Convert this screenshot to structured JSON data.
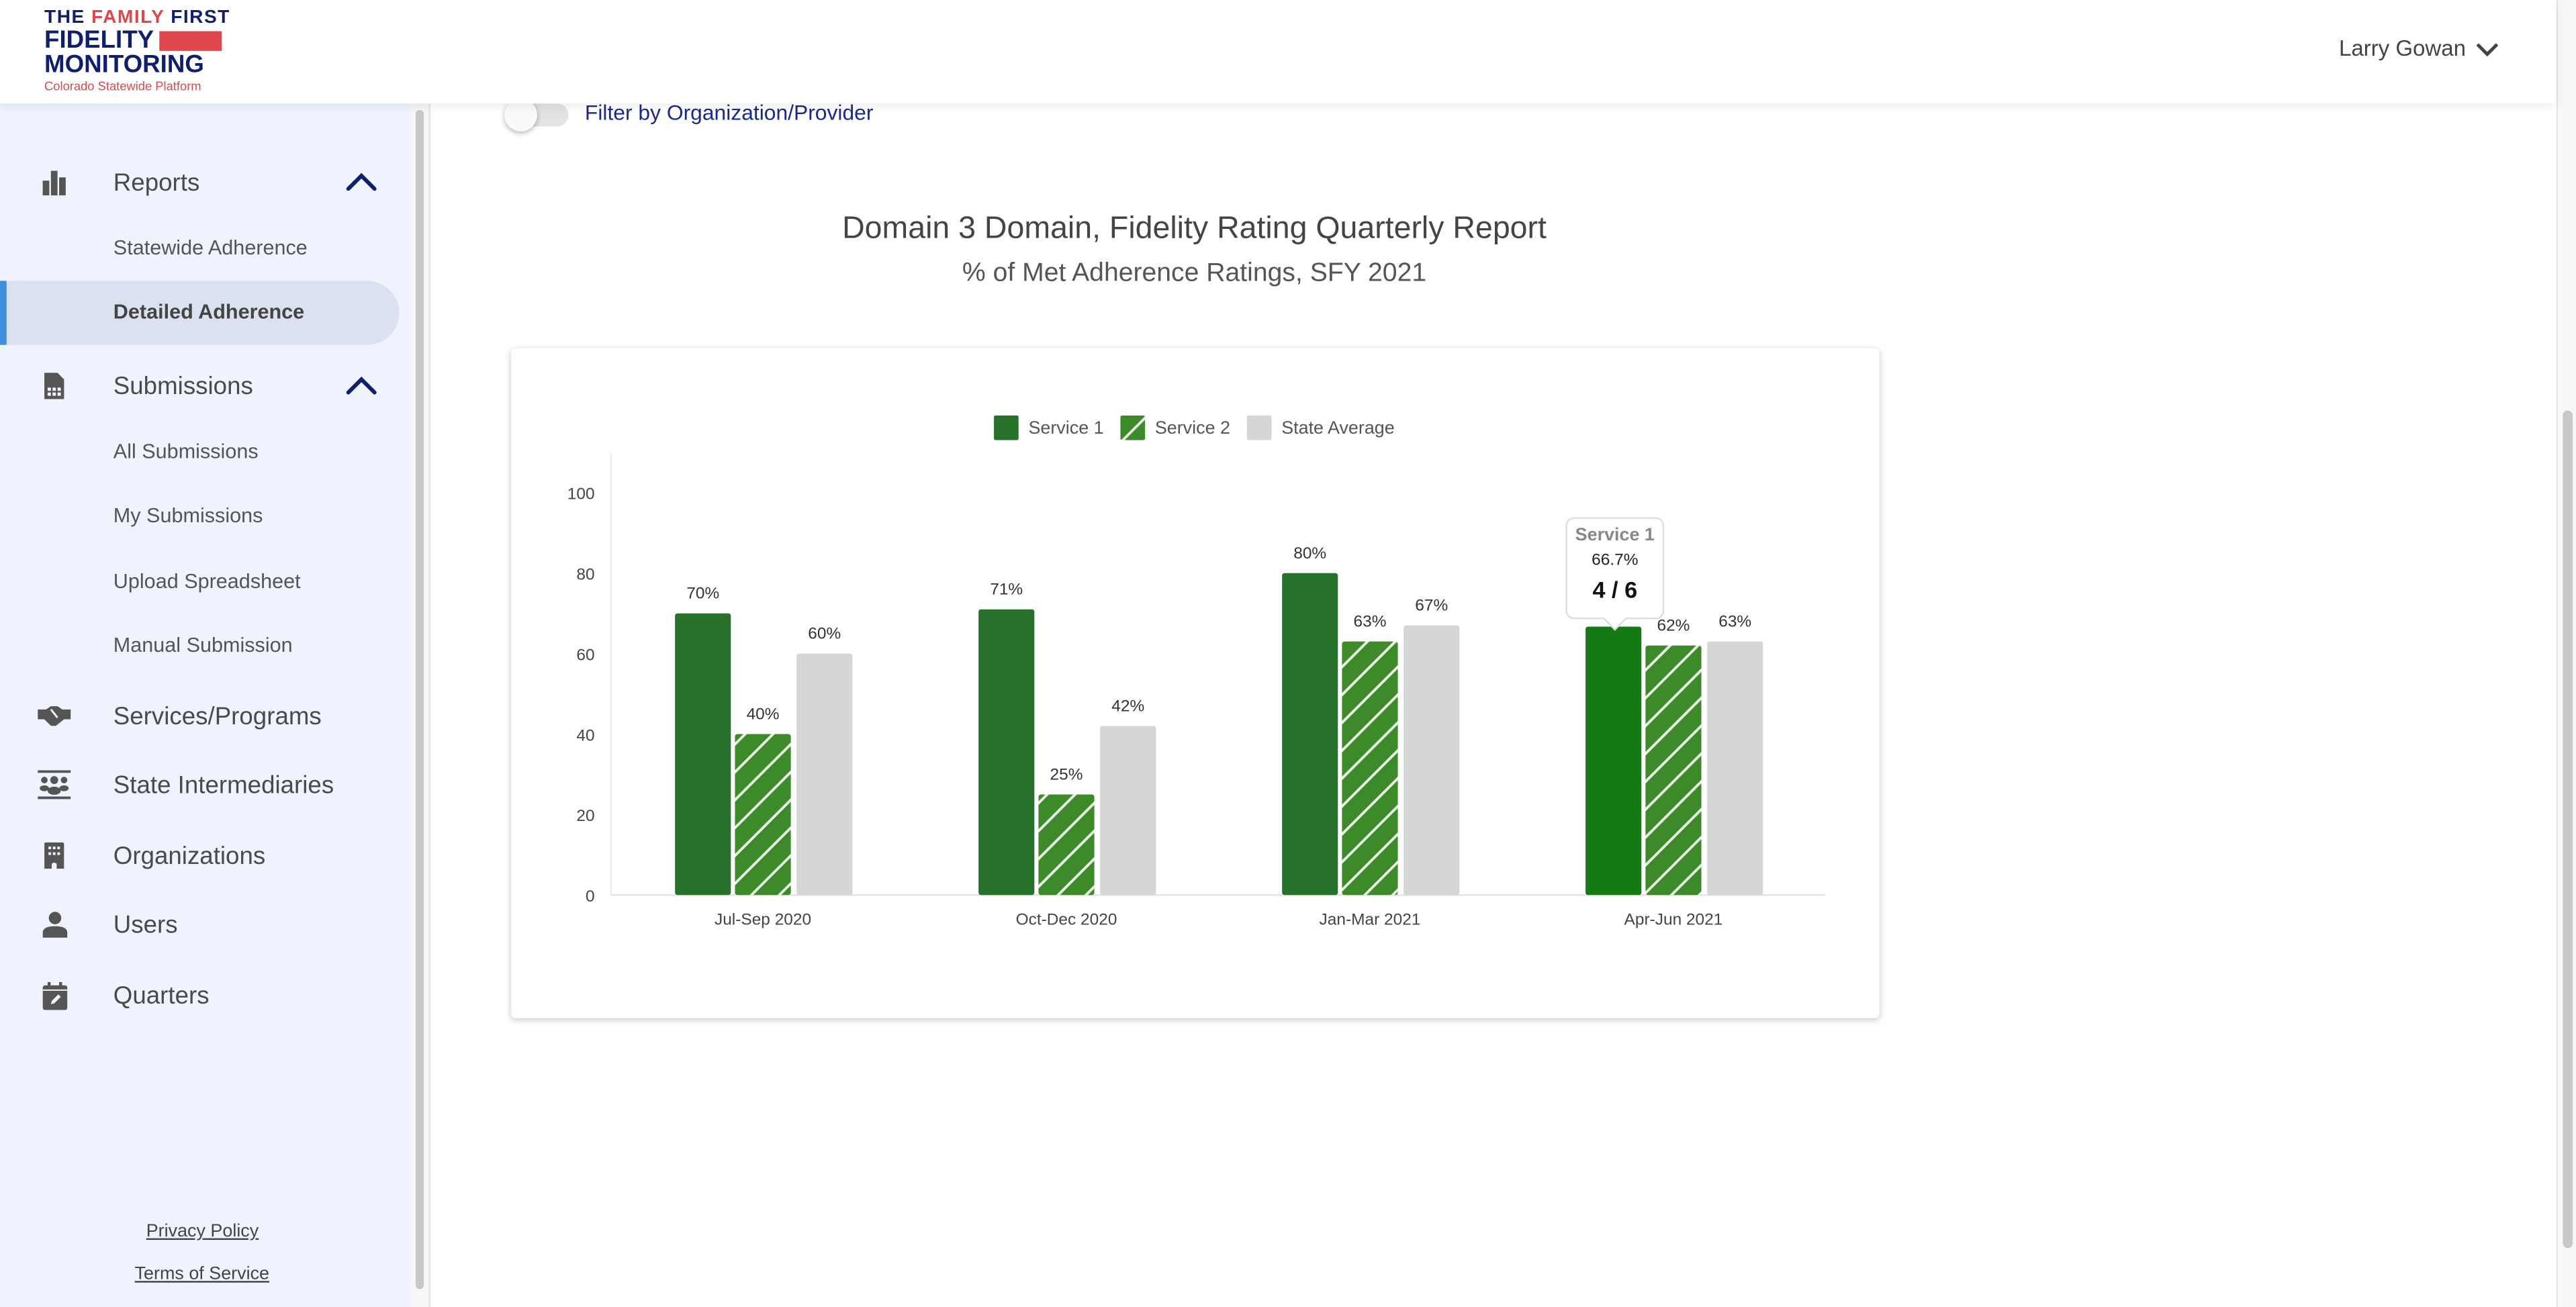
{
  "header": {
    "logo": {
      "line1a": "THE ",
      "line1b": "FAMILY",
      "line1c": " FIRST",
      "line2": "FIDELITY",
      "line3": "MONITORING",
      "line4": "Colorado Statewide Platform"
    },
    "user_name": "Larry Gowan"
  },
  "sidebar": {
    "reports": {
      "label": "Reports",
      "items": [
        "Statewide Adherence",
        "Detailed Adherence"
      ],
      "active": "Detailed Adherence"
    },
    "submissions": {
      "label": "Submissions",
      "items": [
        "All Submissions",
        "My Submissions",
        "Upload Spreadsheet",
        "Manual Submission"
      ]
    },
    "items": [
      {
        "label": "Services/Programs",
        "icon": "handshake-icon"
      },
      {
        "label": "State Intermediaries",
        "icon": "group-icon"
      },
      {
        "label": "Organizations",
        "icon": "building-icon"
      },
      {
        "label": "Users",
        "icon": "person-icon"
      },
      {
        "label": "Quarters",
        "icon": "calendar-edit-icon"
      }
    ],
    "privacy": "Privacy Policy",
    "terms": "Terms of Service"
  },
  "main": {
    "filter_label": "Filter by Organization/Provider",
    "filter_on": false
  },
  "chart_data": {
    "type": "bar",
    "title": "Domain 3 Domain, Fidelity Rating Quarterly Report",
    "subtitle": "% of Met Adherence Ratings, SFY 2021",
    "categories": [
      "Jul-Sep 2020",
      "Oct-Dec 2020",
      "Jan-Mar 2021",
      "Apr-Jun 2021"
    ],
    "series": [
      {
        "name": "Service 1",
        "values": [
          70,
          71,
          80,
          66.7
        ],
        "labels": [
          "70%",
          "71%",
          "80%",
          ""
        ],
        "color": "#26722a",
        "pattern": "solid"
      },
      {
        "name": "Service 2",
        "values": [
          40,
          25,
          63,
          62
        ],
        "labels": [
          "40%",
          "25%",
          "63%",
          "62%"
        ],
        "color": "#3d8a2b",
        "pattern": "diagonal-stripes"
      },
      {
        "name": "State Average",
        "values": [
          60,
          42,
          67,
          63
        ],
        "labels": [
          "60%",
          "42%",
          "67%",
          "63%"
        ],
        "color": "#d6d6d6",
        "pattern": "solid"
      }
    ],
    "yticks": [
      "0",
      "20",
      "40",
      "60",
      "80",
      "100"
    ],
    "ylim": [
      0,
      100
    ],
    "legend": "top",
    "grid": false,
    "tooltip": {
      "series": "Service 1",
      "percent": "66.7%",
      "ratio": "4 / 6",
      "category": "Apr-Jun 2021",
      "hover_color": "#157a14"
    }
  }
}
